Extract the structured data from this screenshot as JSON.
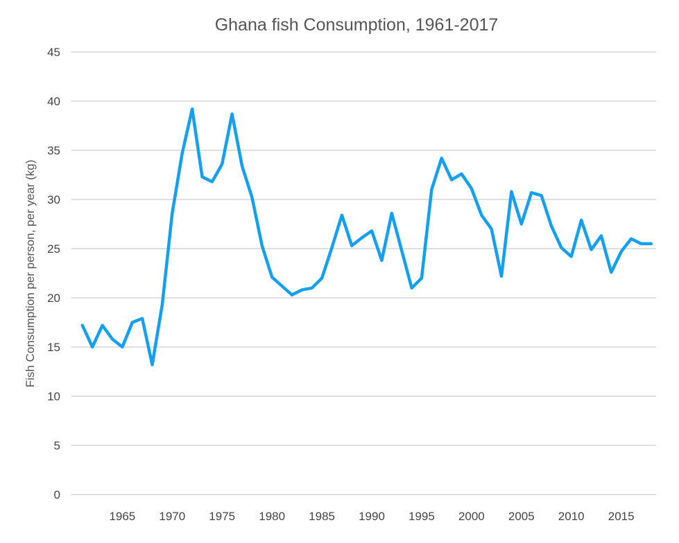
{
  "chart_data": {
    "type": "line",
    "title": "Ghana fish Consumption, 1961-2017",
    "xlabel": "",
    "ylabel": "Fish Consumption per person, per year (kg)",
    "xlim": [
      1959.9,
      2018.5
    ],
    "ylim": [
      0,
      45
    ],
    "x_ticks": [
      1965,
      1970,
      1975,
      1980,
      1985,
      1990,
      1995,
      2000,
      2005,
      2010,
      2015
    ],
    "y_ticks": [
      0,
      5,
      10,
      15,
      20,
      25,
      30,
      35,
      40,
      45
    ],
    "grid": true,
    "legend": "none",
    "line_color": "#14a0f2",
    "series": [
      {
        "x": [
          1961,
          1962,
          1963,
          1964,
          1965,
          1966,
          1967,
          1968,
          1969,
          1970,
          1971,
          1972,
          1973,
          1974,
          1975,
          1976,
          1977,
          1978,
          1979,
          1980,
          1981,
          1982,
          1983,
          1984,
          1985,
          1986,
          1987,
          1988,
          1989,
          1990,
          1991,
          1992,
          1993,
          1994,
          1995,
          1996,
          1997,
          1998,
          1999,
          2000,
          2001,
          2002,
          2003,
          2004,
          2005,
          2006,
          2007,
          2008,
          2009,
          2010,
          2011,
          2012,
          2013,
          2014,
          2015,
          2016,
          2017,
          2018
        ],
        "values": [
          17.2,
          15.0,
          17.2,
          15.8,
          15.0,
          17.5,
          17.9,
          13.2,
          19.3,
          28.6,
          34.7,
          39.2,
          32.3,
          31.8,
          33.6,
          38.7,
          33.4,
          30.2,
          25.3,
          22.1,
          21.2,
          20.3,
          20.8,
          21.0,
          22.0,
          25.1,
          28.4,
          25.3,
          26.1,
          26.8,
          23.8,
          28.6,
          24.8,
          21.0,
          22.0,
          31.0,
          34.2,
          32.0,
          32.6,
          31.1,
          28.4,
          27.0,
          22.2,
          30.8,
          27.5,
          30.7,
          30.4,
          27.3,
          25.1,
          24.2,
          27.9,
          24.9,
          26.3,
          22.6,
          24.7,
          26.0,
          25.5,
          25.5
        ]
      }
    ]
  }
}
